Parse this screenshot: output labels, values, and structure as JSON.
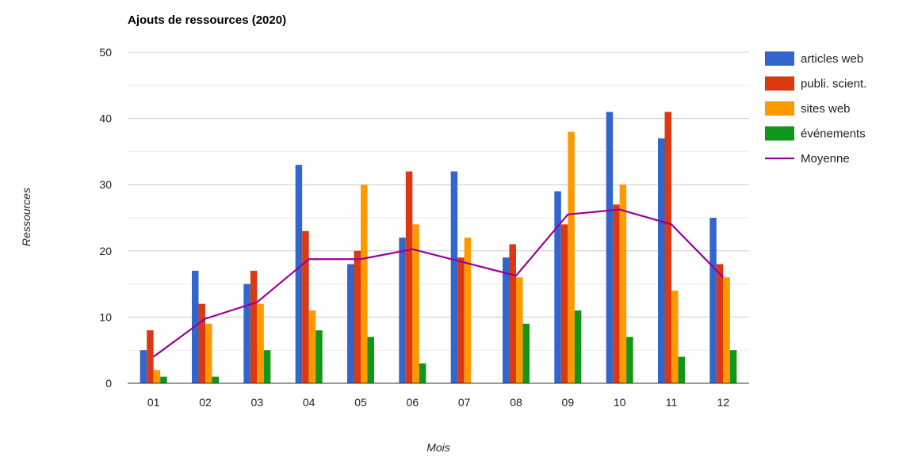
{
  "chart_data": {
    "type": "bar",
    "title": "Ajouts de ressources (2020)",
    "xlabel": "Mois",
    "ylabel": "Ressources",
    "ylim": [
      0,
      50
    ],
    "yticks": [
      0,
      10,
      20,
      30,
      40,
      50
    ],
    "grid": true,
    "legend_position": "right",
    "categories": [
      "01",
      "02",
      "03",
      "04",
      "05",
      "06",
      "07",
      "08",
      "09",
      "10",
      "11",
      "12"
    ],
    "series": [
      {
        "name": "articles web",
        "kind": "bar",
        "color": "#3366cc",
        "values": [
          5,
          17,
          15,
          33,
          18,
          22,
          32,
          19,
          29,
          41,
          37,
          25
        ]
      },
      {
        "name": "publi. scient.",
        "kind": "bar",
        "color": "#dc3912",
        "values": [
          8,
          12,
          17,
          23,
          20,
          32,
          19,
          21,
          24,
          27,
          41,
          18
        ]
      },
      {
        "name": "sites web",
        "kind": "bar",
        "color": "#ff9900",
        "values": [
          2,
          9,
          12,
          11,
          30,
          24,
          22,
          16,
          38,
          30,
          14,
          16
        ]
      },
      {
        "name": "événements",
        "kind": "bar",
        "color": "#109618",
        "values": [
          1,
          1,
          5,
          8,
          7,
          3,
          0,
          9,
          11,
          7,
          4,
          5
        ]
      },
      {
        "name": "Moyenne",
        "kind": "line",
        "color": "#990099",
        "values": [
          4,
          9.75,
          12.25,
          18.75,
          18.75,
          20.25,
          18.25,
          16.25,
          25.5,
          26.25,
          24,
          16
        ]
      }
    ]
  }
}
